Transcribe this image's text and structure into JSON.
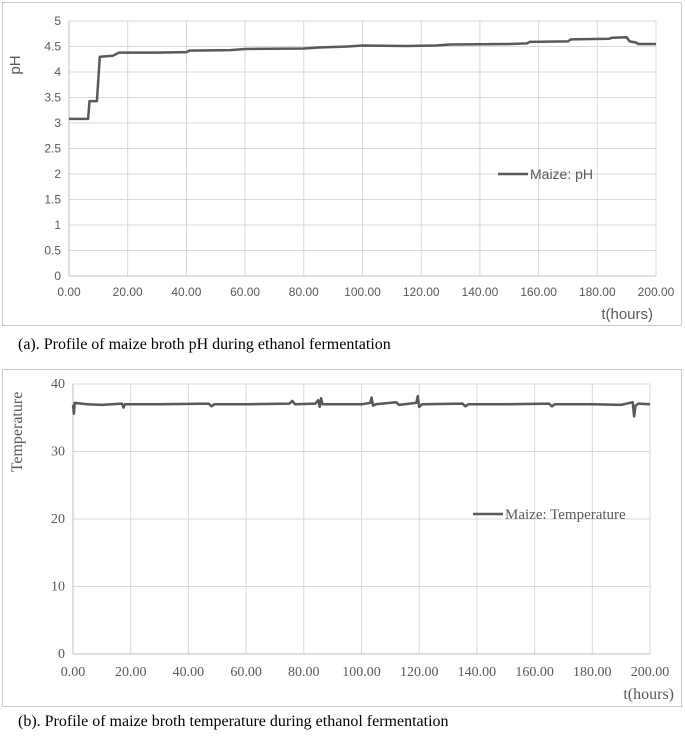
{
  "chart_data": [
    {
      "type": "line",
      "title": "",
      "xlabel": "t(hours)",
      "ylabel": "pH",
      "xlim": [
        0,
        200
      ],
      "ylim": [
        0,
        5
      ],
      "x_ticks": [
        "0.00",
        "20.00",
        "40.00",
        "60.00",
        "80.00",
        "100.00",
        "120.00",
        "140.00",
        "160.00",
        "180.00",
        "200.00"
      ],
      "y_ticks": [
        "0",
        "0.5",
        "1",
        "1.5",
        "2",
        "2.5",
        "3",
        "3.5",
        "4",
        "4.5",
        "5"
      ],
      "grid": true,
      "legend": "center-right",
      "series": [
        {
          "name": "Maize: pH",
          "color": "#595959",
          "points": [
            [
              0,
              3.08
            ],
            [
              6.5,
              3.08
            ],
            [
              7,
              3.43
            ],
            [
              9.5,
              3.43
            ],
            [
              10.5,
              4.3
            ],
            [
              15,
              4.32
            ],
            [
              17,
              4.38
            ],
            [
              30,
              4.38
            ],
            [
              40,
              4.39
            ],
            [
              41,
              4.42
            ],
            [
              55,
              4.43
            ],
            [
              60,
              4.45
            ],
            [
              80,
              4.46
            ],
            [
              85,
              4.48
            ],
            [
              95,
              4.5
            ],
            [
              100,
              4.52
            ],
            [
              115,
              4.51
            ],
            [
              125,
              4.52
            ],
            [
              130,
              4.54
            ],
            [
              150,
              4.55
            ],
            [
              156,
              4.56
            ],
            [
              157,
              4.59
            ],
            [
              170,
              4.6
            ],
            [
              171,
              4.64
            ],
            [
              184,
              4.65
            ],
            [
              185,
              4.67
            ],
            [
              190,
              4.68
            ],
            [
              191,
              4.6
            ],
            [
              193,
              4.58
            ],
            [
              194,
              4.55
            ],
            [
              200,
              4.55
            ]
          ]
        }
      ]
    },
    {
      "type": "line",
      "title": "",
      "xlabel": "t(hours)",
      "ylabel": "Temperature",
      "xlim": [
        0,
        200
      ],
      "ylim": [
        0,
        40
      ],
      "x_ticks": [
        "0.00",
        "20.00",
        "40.00",
        "60.00",
        "80.00",
        "100.00",
        "120.00",
        "140.00",
        "160.00",
        "180.00",
        "200.00"
      ],
      "y_ticks": [
        "0",
        "10",
        "20",
        "30",
        "40"
      ],
      "grid": true,
      "legend": "center-right",
      "series": [
        {
          "name": "Maize: Temperature",
          "color": "#595959",
          "points": [
            [
              0,
              36.9
            ],
            [
              0.3,
              35.6
            ],
            [
              0.6,
              37.2
            ],
            [
              5,
              37.0
            ],
            [
              10,
              36.9
            ],
            [
              17,
              37.1
            ],
            [
              17.5,
              36.5
            ],
            [
              18,
              37.0
            ],
            [
              30,
              37.0
            ],
            [
              47,
              37.1
            ],
            [
              48,
              36.7
            ],
            [
              49,
              37.0
            ],
            [
              60,
              37.0
            ],
            [
              75,
              37.1
            ],
            [
              76,
              37.5
            ],
            [
              77,
              37.0
            ],
            [
              84,
              37.1
            ],
            [
              85,
              37.6
            ],
            [
              85.5,
              36.6
            ],
            [
              86,
              37.9
            ],
            [
              86.5,
              37.0
            ],
            [
              100,
              37.0
            ],
            [
              103,
              37.2
            ],
            [
              103.5,
              38.0
            ],
            [
              104,
              36.8
            ],
            [
              105,
              37.0
            ],
            [
              112,
              37.3
            ],
            [
              113,
              36.9
            ],
            [
              119,
              37.2
            ],
            [
              119.5,
              38.2
            ],
            [
              120,
              36.6
            ],
            [
              121,
              37.0
            ],
            [
              135,
              37.1
            ],
            [
              136,
              36.7
            ],
            [
              137,
              37.0
            ],
            [
              150,
              37.0
            ],
            [
              165,
              37.1
            ],
            [
              166,
              36.7
            ],
            [
              167,
              37.0
            ],
            [
              180,
              37.0
            ],
            [
              190,
              36.9
            ],
            [
              194,
              37.3
            ],
            [
              194.5,
              35.2
            ],
            [
              195,
              36.8
            ],
            [
              196,
              37.1
            ],
            [
              200,
              37.0
            ]
          ]
        }
      ]
    }
  ],
  "captions": {
    "a": "(a). Profile of maize broth pH during ethanol fermentation",
    "b": "(b). Profile of maize broth temperature during ethanol fermentation"
  }
}
